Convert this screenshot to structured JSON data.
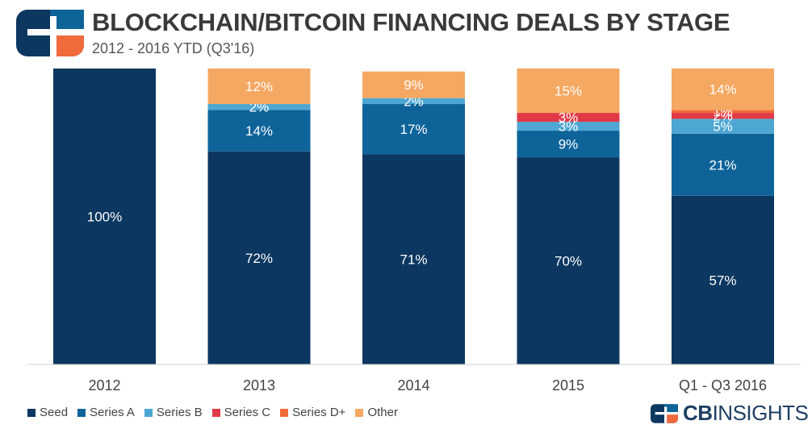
{
  "header": {
    "title": "BLOCKCHAIN/BITCOIN FINANCING DEALS BY STAGE",
    "subtitle": "2012 - 2016 YTD (Q3'16)"
  },
  "brand": {
    "part1": "CB",
    "part2": "INSIGHTS"
  },
  "colors": {
    "Seed": "#0c3760",
    "Series A": "#0e6399",
    "Series B": "#4ea7d2",
    "Series C": "#e13a47",
    "Series D+": "#f06a3b",
    "Other": "#f5a862"
  },
  "chart_data": {
    "type": "bar",
    "stacked": true,
    "percent_stacked": true,
    "title": "BLOCKCHAIN/BITCOIN FINANCING DEALS BY STAGE",
    "subtitle": "2012 - 2016 YTD (Q3'16)",
    "categories": [
      "2012",
      "2013",
      "2014",
      "2015",
      "Q1 - Q3 2016"
    ],
    "series": [
      {
        "name": "Seed",
        "values": [
          100,
          72,
          71,
          70,
          57
        ]
      },
      {
        "name": "Series A",
        "values": [
          0,
          14,
          17,
          9,
          21
        ]
      },
      {
        "name": "Series B",
        "values": [
          0,
          2,
          2,
          3,
          5
        ]
      },
      {
        "name": "Series C",
        "values": [
          0,
          0,
          0,
          3,
          2
        ]
      },
      {
        "name": "Series D+",
        "values": [
          0,
          0,
          0,
          0,
          1
        ]
      },
      {
        "name": "Other",
        "values": [
          0,
          12,
          9,
          15,
          14
        ]
      }
    ],
    "labels": [
      [
        "100%",
        "",
        "",
        "",
        "",
        ""
      ],
      [
        "72%",
        "14%",
        "2%",
        "",
        "",
        "12%"
      ],
      [
        "71%",
        "17%",
        "2%",
        "",
        "",
        "9%"
      ],
      [
        "70%",
        "9%",
        "3%",
        "3%",
        "",
        "15%"
      ],
      [
        "57%",
        "21%",
        "5%",
        "2%",
        "1%",
        "14%"
      ]
    ],
    "ylim": [
      0,
      100
    ],
    "legend_position": "bottom-left",
    "grid": false
  }
}
